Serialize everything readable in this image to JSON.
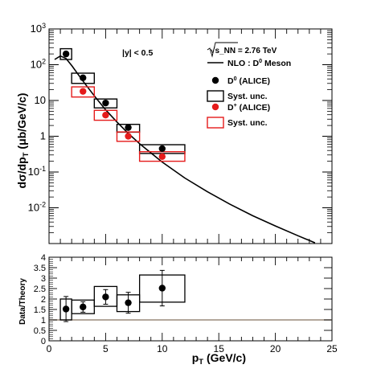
{
  "chart_data": [
    {
      "type": "scatter",
      "xlabel": "p_T (GeV/c)",
      "ylabel": "dσ/dp_T (μb/GeV/c)",
      "yscale": "log",
      "xlim": [
        0,
        25
      ],
      "ylim": [
        0.001,
        1000
      ],
      "annotation": "|y| < 0.5",
      "energy_label": "√s_NN = 2.76 TeV",
      "x_tick_labels": [
        "0",
        "5",
        "10",
        "15",
        "20",
        "25"
      ],
      "y_tick_labels": [
        "10^-2",
        "10^-1",
        "1",
        "10",
        "10^2",
        "10^3"
      ],
      "legend": {
        "placement": "top-right",
        "entries": [
          "NLO : D^0 Meson",
          "D^0 (ALICE)",
          "Syst. unc.",
          "D^+ (ALICE)",
          "Syst. unc."
        ]
      },
      "series": [
        {
          "name": "D^0 (ALICE)",
          "color": "#000000",
          "x": [
            1.5,
            3,
            5,
            7,
            10
          ],
          "y": [
            200,
            43,
            8.5,
            1.75,
            0.45
          ],
          "syst_x": [
            [
              1,
              2
            ],
            [
              2,
              4
            ],
            [
              4,
              6
            ],
            [
              6,
              8
            ],
            [
              8,
              12
            ]
          ],
          "syst_y": [
            [
              140,
              280
            ],
            [
              30,
              58
            ],
            [
              6.2,
              11
            ],
            [
              1.3,
              2.15
            ],
            [
              0.33,
              0.58
            ]
          ]
        },
        {
          "name": "D^+ (ALICE)",
          "color": "#e51b1b",
          "x": [
            3,
            5,
            7,
            10
          ],
          "y": [
            18,
            3.9,
            1.0,
            0.27
          ],
          "syst_x": [
            [
              2,
              4
            ],
            [
              4,
              6
            ],
            [
              6,
              8
            ],
            [
              8,
              12
            ]
          ],
          "syst_y": [
            [
              12.5,
              24
            ],
            [
              2.8,
              5.3
            ],
            [
              0.72,
              1.32
            ],
            [
              0.2,
              0.37
            ]
          ]
        },
        {
          "name": "NLO : D^0 Meson",
          "type": "line",
          "color": "#000000",
          "x": [
            0.5,
            1,
            1.5,
            2,
            3,
            4,
            5,
            6,
            7,
            8,
            10,
            12,
            14,
            16,
            18,
            20,
            22,
            23.5
          ],
          "y": [
            140,
            175,
            150,
            95,
            35,
            13.5,
            5.5,
            2.5,
            1.2,
            0.62,
            0.19,
            0.068,
            0.028,
            0.0125,
            0.006,
            0.0031,
            0.00165,
            0.00105
          ]
        }
      ]
    },
    {
      "type": "scatter",
      "xlabel": "p_T (GeV/c)",
      "ylabel": "Data/Theory",
      "xlim": [
        0,
        25
      ],
      "ylim": [
        0,
        4
      ],
      "x_tick_labels": [
        "0",
        "5",
        "10",
        "15",
        "20",
        "25"
      ],
      "y_tick_labels": [
        "0",
        "0.5",
        "1",
        "1.5",
        "2",
        "2.5",
        "3",
        "3.5",
        "4"
      ],
      "reference_line": 1,
      "series": [
        {
          "x": [
            1.5,
            3,
            5,
            7,
            10
          ],
          "y": [
            1.52,
            1.62,
            2.1,
            1.82,
            2.52
          ],
          "stat_err": [
            0.6,
            0.25,
            0.35,
            0.5,
            0.85
          ],
          "syst_x": [
            [
              1,
              2
            ],
            [
              2,
              4
            ],
            [
              4,
              6
            ],
            [
              6,
              8
            ],
            [
              8,
              12
            ]
          ],
          "syst_y": [
            [
              1.0,
              2.0
            ],
            [
              1.3,
              1.95
            ],
            [
              1.65,
              2.6
            ],
            [
              1.4,
              2.2
            ],
            [
              1.85,
              3.15
            ]
          ]
        }
      ]
    }
  ]
}
